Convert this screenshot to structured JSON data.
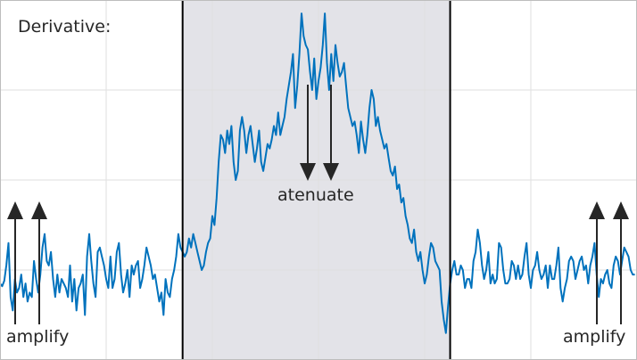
{
  "chart_data": {
    "type": "line",
    "title": "Derivative:",
    "xlabel": "",
    "ylabel": "",
    "grid": true,
    "xlim": [
      0,
      300
    ],
    "ylim": [
      -1,
      3
    ],
    "highlight_region": [
      86,
      212
    ],
    "colors": {
      "line": "#0072bd",
      "region": "#e3e3e8",
      "grid": "#dfdfdf",
      "arrow": "#262626"
    },
    "annotations": [
      {
        "text": "amplify",
        "side": "left",
        "direction": "up"
      },
      {
        "text": "atenuate",
        "side": "center",
        "direction": "down"
      },
      {
        "text": "amplify",
        "side": "right",
        "direction": "up"
      }
    ],
    "series": [
      {
        "x": [
          0,
          1,
          2,
          3,
          4,
          5,
          6,
          7,
          8,
          9,
          10,
          11,
          12,
          13,
          14,
          15,
          16,
          17,
          18,
          19,
          20,
          21,
          22,
          23,
          24,
          25,
          26,
          27,
          28,
          29,
          30,
          31,
          32,
          33,
          34,
          35,
          36,
          37,
          38,
          39,
          40,
          41,
          42,
          43,
          44,
          45,
          46,
          47,
          48,
          49,
          50,
          51,
          52,
          53,
          54,
          55,
          56,
          57,
          58,
          59,
          60,
          61,
          62,
          63,
          64,
          65,
          66,
          67,
          68,
          69,
          70,
          71,
          72,
          73,
          74,
          75,
          76,
          77,
          78,
          79,
          80,
          81,
          82,
          83,
          84,
          85,
          86,
          87,
          88,
          89,
          90,
          91,
          92,
          93,
          94,
          95,
          96,
          97,
          98,
          99,
          100,
          101,
          102,
          103,
          104,
          105,
          106,
          107,
          108,
          109,
          110,
          111,
          112,
          113,
          114,
          115,
          116,
          117,
          118,
          119,
          120,
          121,
          122,
          123,
          124,
          125,
          126,
          127,
          128,
          129,
          130,
          131,
          132,
          133,
          134,
          135,
          136,
          137,
          138,
          139,
          140,
          141,
          142,
          143,
          144,
          145,
          146,
          147,
          148,
          149,
          150,
          151,
          152,
          153,
          154,
          155,
          156,
          157,
          158,
          159,
          160,
          161,
          162,
          163,
          164,
          165,
          166,
          167,
          168,
          169,
          170,
          171,
          172,
          173,
          174,
          175,
          176,
          177,
          178,
          179,
          180,
          181,
          182,
          183,
          184,
          185,
          186,
          187,
          188,
          189,
          190,
          191,
          192,
          193,
          194,
          195,
          196,
          197,
          198,
          199,
          200,
          201,
          202,
          203,
          204,
          205,
          206,
          207,
          208,
          209,
          210,
          211,
          212,
          213,
          214,
          215,
          216,
          217,
          218,
          219,
          220,
          221,
          222,
          223,
          224,
          225,
          226,
          227,
          228,
          229,
          230,
          231,
          232,
          233,
          234,
          235,
          236,
          237,
          238,
          239,
          240,
          241,
          242,
          243,
          244,
          245,
          246,
          247,
          248,
          249,
          250,
          251,
          252,
          253,
          254,
          255,
          256,
          257,
          258,
          259,
          260,
          261,
          262,
          263,
          264,
          265,
          266,
          267,
          268,
          269,
          270,
          271,
          272,
          273,
          274,
          275,
          276,
          277,
          278,
          279,
          280,
          281,
          282,
          283,
          284,
          285,
          286,
          287,
          288,
          289,
          290,
          291,
          292,
          293,
          294,
          295,
          296,
          297,
          298,
          299
        ],
        "y": [
          -0.15,
          -0.18,
          -0.12,
          0.05,
          0.3,
          -0.3,
          -0.45,
          -0.1,
          -0.25,
          -0.2,
          -0.05,
          -0.3,
          -0.15,
          -0.35,
          -0.25,
          -0.3,
          0.1,
          -0.1,
          -0.25,
          -0.05,
          0.25,
          0.4,
          0.1,
          0.05,
          0.2,
          -0.1,
          -0.3,
          -0.05,
          -0.25,
          -0.1,
          -0.15,
          -0.2,
          -0.3,
          0.05,
          -0.35,
          -0.1,
          -0.45,
          -0.2,
          -0.15,
          -0.05,
          -0.5,
          0.15,
          0.4,
          0.1,
          -0.15,
          -0.3,
          0.2,
          0.25,
          0.15,
          0.05,
          -0.1,
          -0.2,
          0.15,
          -0.2,
          -0.1,
          0.2,
          0.3,
          -0.05,
          -0.25,
          -0.15,
          0.0,
          -0.3,
          0.05,
          -0.05,
          0.05,
          0.1,
          -0.2,
          -0.1,
          0.05,
          0.25,
          0.15,
          0.05,
          -0.1,
          -0.05,
          -0.2,
          -0.35,
          -0.25,
          -0.5,
          -0.1,
          -0.25,
          -0.3,
          -0.1,
          0.0,
          0.15,
          0.4,
          0.25,
          0.2,
          0.15,
          0.2,
          0.35,
          0.25,
          0.4,
          0.3,
          0.2,
          0.1,
          0.0,
          0.05,
          0.2,
          0.3,
          0.35,
          0.6,
          0.5,
          0.8,
          1.2,
          1.5,
          1.45,
          1.3,
          1.55,
          1.4,
          1.6,
          1.2,
          1.0,
          1.1,
          1.55,
          1.7,
          1.55,
          1.3,
          1.5,
          1.6,
          1.4,
          1.2,
          1.35,
          1.55,
          1.2,
          1.1,
          1.25,
          1.4,
          1.35,
          1.45,
          1.6,
          1.5,
          1.75,
          1.5,
          1.6,
          1.7,
          1.9,
          2.05,
          2.2,
          2.4,
          1.8,
          2.05,
          2.4,
          2.85,
          2.6,
          2.5,
          2.45,
          2.2,
          2.0,
          2.35,
          1.9,
          2.1,
          2.25,
          2.5,
          2.85,
          2.3,
          2.0,
          2.4,
          2.1,
          2.5,
          2.3,
          2.15,
          2.2,
          2.3,
          2.05,
          1.8,
          1.7,
          1.6,
          1.65,
          1.5,
          1.3,
          1.65,
          1.45,
          1.3,
          1.5,
          1.8,
          2.0,
          1.9,
          1.6,
          1.7,
          1.55,
          1.45,
          1.35,
          1.4,
          1.25,
          1.1,
          1.05,
          1.15,
          0.9,
          0.95,
          0.75,
          0.8,
          0.6,
          0.5,
          0.35,
          0.3,
          0.45,
          0.2,
          0.1,
          0.2,
          0.0,
          -0.15,
          -0.05,
          0.15,
          0.3,
          0.25,
          0.1,
          0.05,
          0.0,
          -0.35,
          -0.55,
          -0.7,
          -0.4,
          -0.15,
          0.0,
          0.1,
          -0.05,
          -0.05,
          0.05,
          0.0,
          -0.2,
          -0.1,
          -0.1,
          -0.2,
          0.1,
          0.2,
          0.45,
          0.3,
          0.05,
          -0.1,
          0.0,
          0.2,
          -0.15,
          -0.05,
          -0.15,
          -0.1,
          0.3,
          0.25,
          0.0,
          -0.15,
          -0.15,
          -0.1,
          0.1,
          0.05,
          -0.1,
          0.05,
          -0.1,
          -0.05,
          0.15,
          0.3,
          -0.05,
          -0.2,
          0.0,
          0.05,
          0.2,
          0.0,
          -0.1,
          -0.05,
          0.05,
          -0.2,
          0.05,
          -0.1,
          -0.1,
          0.05,
          0.25,
          -0.2,
          -0.35,
          -0.2,
          -0.1,
          0.1,
          0.15,
          0.1,
          -0.1,
          0.0,
          0.1,
          0.15,
          0.0,
          0.05,
          -0.15,
          0.05,
          0.15,
          0.3,
          -0.05,
          -0.3,
          -0.1,
          -0.15,
          -0.05,
          0.0,
          -0.15,
          -0.2,
          0.05,
          0.15,
          0.1,
          -0.05,
          0.1,
          0.25,
          0.2,
          0.15,
          0.0,
          -0.05,
          -0.05
        ]
      }
    ]
  }
}
